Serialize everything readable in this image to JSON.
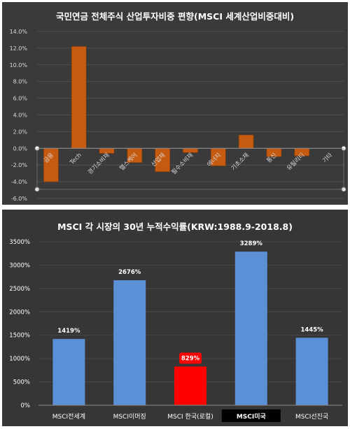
{
  "chart_data": [
    {
      "type": "bar",
      "title": "국민연금 전체주식 산업투자비중 편향(MSCI 세계산업비중대비)",
      "categories": [
        "금융",
        "Tech",
        "경기소비재",
        "헬스케어",
        "산업재",
        "필수소비재",
        "에너지",
        "기초소재",
        "통신",
        "유틸리티",
        "기타"
      ],
      "values": [
        -4.0,
        12.2,
        -0.6,
        -1.7,
        -2.8,
        -0.5,
        -2.1,
        1.6,
        -1.0,
        -0.9,
        0.0
      ],
      "yticks": [
        "14.0%",
        "12.0%",
        "10.0%",
        "8.0%",
        "6.0%",
        "4.0%",
        "2.0%",
        "0.0%",
        "-2.0%",
        "-4.0%",
        "-6.0%"
      ],
      "ylim": [
        -6,
        14
      ],
      "grid": true,
      "colors": {
        "bar": "#c55a11",
        "background": "#3a3a3a",
        "text": "#d9d9d9"
      }
    },
    {
      "type": "bar",
      "title": "MSCI 각 시장의 30년 누적수익률(KRW:1988.9-2018.8)",
      "categories": [
        "MSCI전세계",
        "MSCI이머징",
        "MSCI 한국(로컬)",
        "MSCI미국",
        "MSCI선진국"
      ],
      "values": [
        1419,
        2676,
        829,
        3289,
        1445
      ],
      "data_labels": [
        "1419%",
        "2676%",
        "829%",
        "3289%",
        "1445%"
      ],
      "yticks": [
        "3500%",
        "3000%",
        "2500%",
        "2000%",
        "1500%",
        "1000%",
        "500%",
        "0%"
      ],
      "ylim": [
        0,
        3500
      ],
      "grid": true,
      "highlight": "MSCI 한국(로컬)",
      "colors": {
        "bar": "#5b8fd6",
        "highlight": "#ff0000",
        "background": "#363636",
        "text": "#ffffff"
      }
    }
  ]
}
